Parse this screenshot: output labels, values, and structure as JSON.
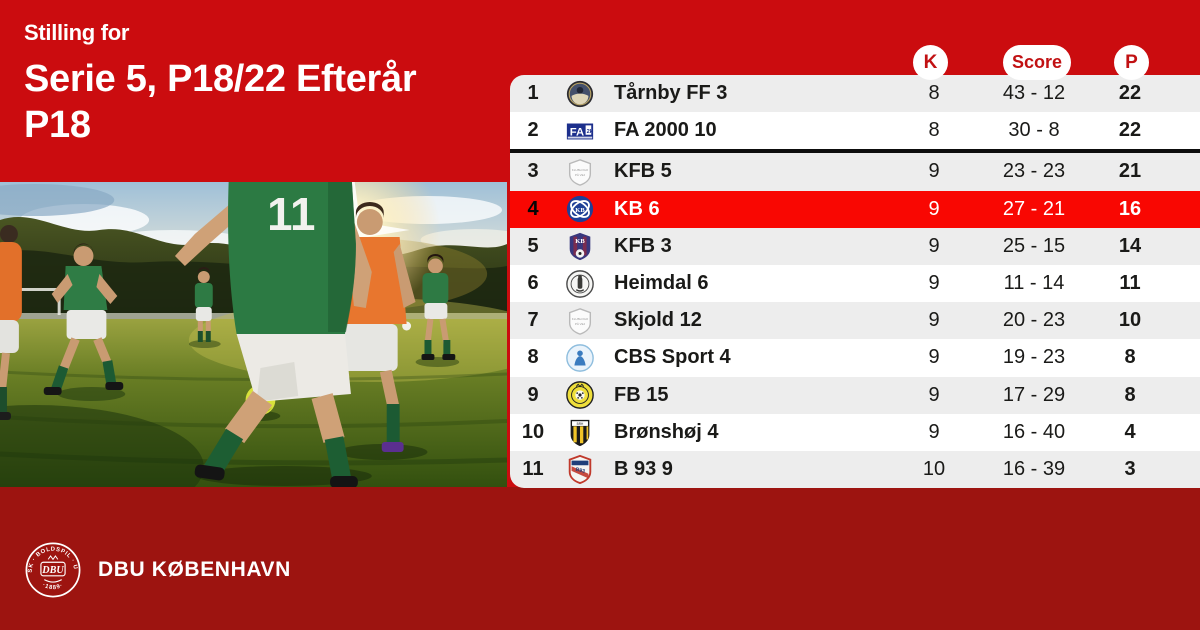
{
  "header": {
    "kicker": "Stilling for",
    "title_line1": "Serie 5, P18/22 Efterår",
    "title_line2": "P18"
  },
  "table": {
    "columns": {
      "games_label": "K",
      "score_label": "Score",
      "points_label": "P"
    },
    "rows": [
      {
        "pos": "1",
        "team": "Tårnby FF 3",
        "games": "8",
        "score": "43 - 12",
        "points": "22",
        "logo": "taarnby",
        "highlight": false,
        "separator_after": false
      },
      {
        "pos": "2",
        "team": "FA 2000 10",
        "games": "8",
        "score": "30 - 8",
        "points": "22",
        "logo": "fa2000",
        "highlight": false,
        "separator_after": true
      },
      {
        "pos": "3",
        "team": "KFB 5",
        "games": "9",
        "score": "23 - 23",
        "points": "21",
        "logo": "placeholder",
        "highlight": false,
        "separator_after": false
      },
      {
        "pos": "4",
        "team": "KB 6",
        "games": "9",
        "score": "27 - 21",
        "points": "16",
        "logo": "kb",
        "highlight": true,
        "separator_after": false
      },
      {
        "pos": "5",
        "team": "KFB 3",
        "games": "9",
        "score": "25 - 15",
        "points": "14",
        "logo": "kfb",
        "highlight": false,
        "separator_after": false
      },
      {
        "pos": "6",
        "team": "Heimdal 6",
        "games": "9",
        "score": "11 - 14",
        "points": "11",
        "logo": "heimdal",
        "highlight": false,
        "separator_after": false
      },
      {
        "pos": "7",
        "team": "Skjold 12",
        "games": "9",
        "score": "20 - 23",
        "points": "10",
        "logo": "placeholder",
        "highlight": false,
        "separator_after": false
      },
      {
        "pos": "8",
        "team": "CBS Sport 4",
        "games": "9",
        "score": "19 - 23",
        "points": "8",
        "logo": "cbs",
        "highlight": false,
        "separator_after": false
      },
      {
        "pos": "9",
        "team": "FB 15",
        "games": "9",
        "score": "17 - 29",
        "points": "8",
        "logo": "fb",
        "highlight": false,
        "separator_after": false
      },
      {
        "pos": "10",
        "team": "Brønshøj 4",
        "games": "9",
        "score": "16 - 40",
        "points": "4",
        "logo": "bronshoj",
        "highlight": false,
        "separator_after": false
      },
      {
        "pos": "11",
        "team": "B 93 9",
        "games": "10",
        "score": "16 - 39",
        "points": "3",
        "logo": "b93",
        "highlight": false,
        "separator_after": false
      }
    ]
  },
  "footer": {
    "brand": "DBU KØBENHAVN",
    "logo_ring_text": "DANSK · BOLDSPIL · UNION",
    "logo_center_text": "DBU",
    "logo_year_text": "·1889·"
  },
  "colors": {
    "background_red": "#cb0c0f",
    "highlight_red": "#f90702",
    "footer_red": "#9d1410",
    "row_gray": "#ededed",
    "row_white": "#ffffff",
    "pill_text_red": "#c11113",
    "separator_black": "#0d0d0d"
  }
}
